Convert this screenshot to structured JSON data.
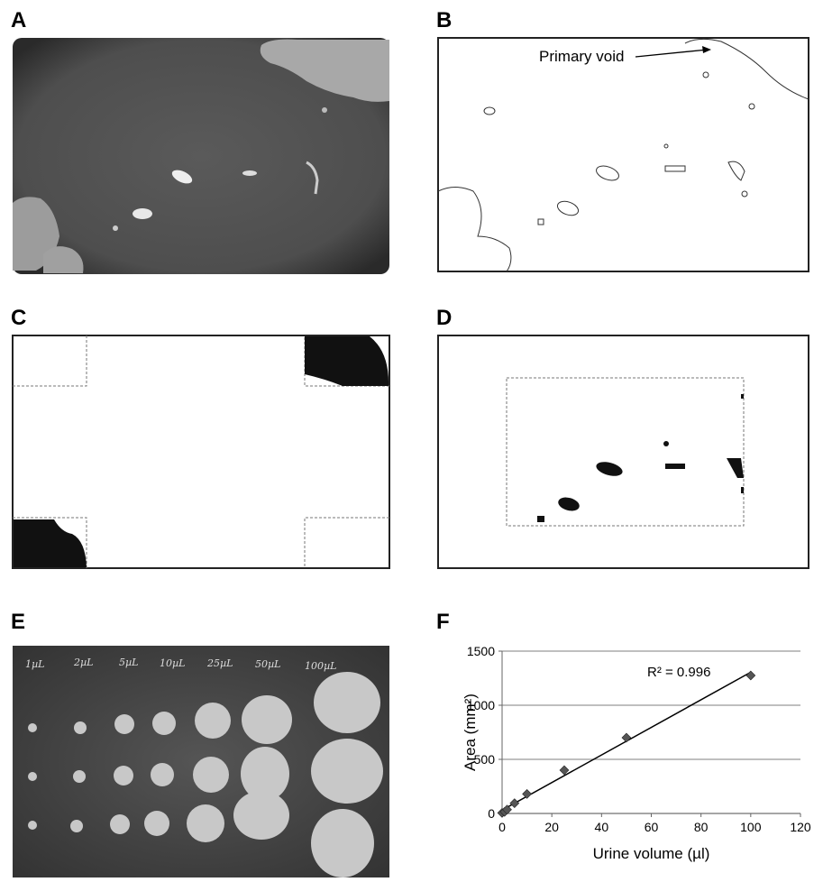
{
  "panel_labels": [
    "A",
    "B",
    "C",
    "D",
    "E",
    "F"
  ],
  "annotation": "Primary void",
  "volume_labels": [
    "1µL",
    "2µL",
    "5µL",
    "10µL",
    "25µL",
    "50µL",
    "100µL"
  ],
  "chart_data": {
    "type": "scatter",
    "x": [
      0,
      1,
      2,
      5,
      10,
      25,
      50,
      100
    ],
    "values": [
      5,
      15,
      35,
      95,
      180,
      400,
      700,
      1275
    ],
    "color": "#555555",
    "xlabel": "Urine volume (µl)",
    "ylabel": "Area (mm²)",
    "annotation": "R² = 0.996",
    "trendline": true,
    "xlim": [
      0,
      120
    ],
    "xticks": [
      0,
      20,
      40,
      60,
      80,
      100,
      120
    ],
    "ylim": [
      0,
      1500
    ],
    "yticks": [
      0,
      500,
      1000,
      1500
    ],
    "grid": true
  }
}
